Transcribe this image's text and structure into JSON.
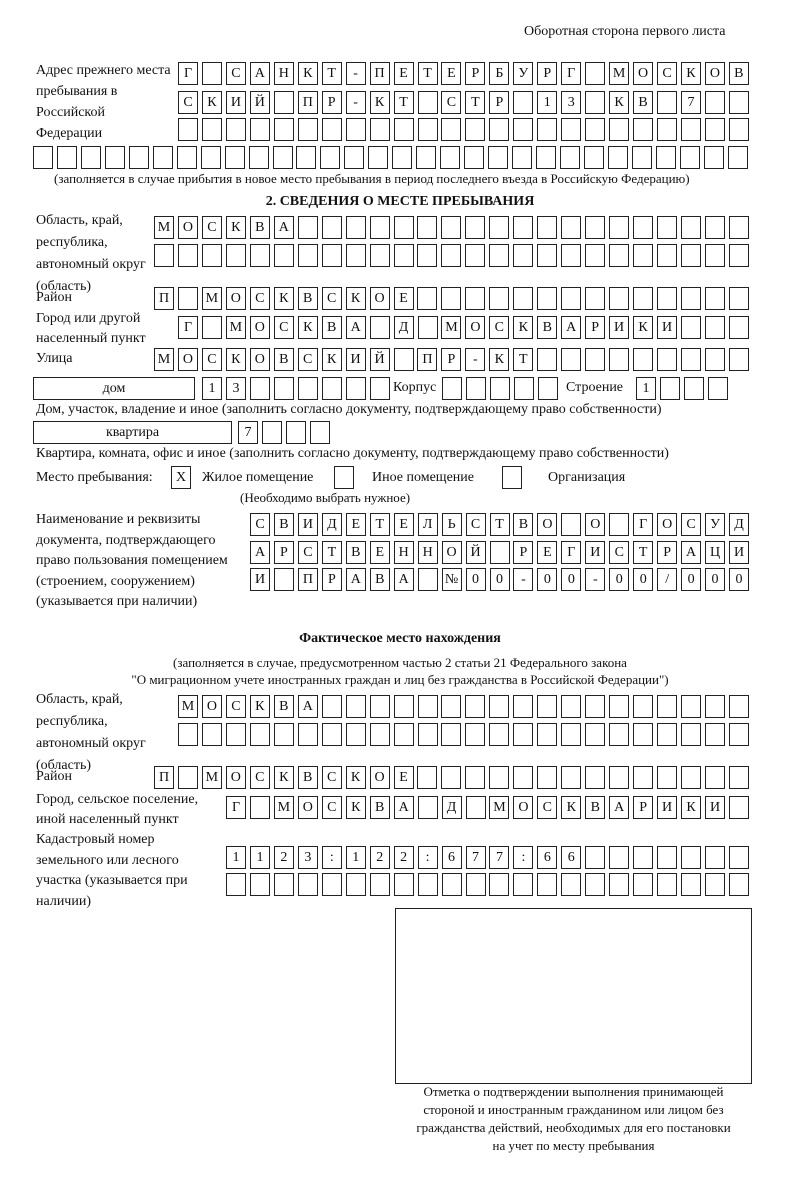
{
  "header": "Оборотная сторона первого листа",
  "prev_address": {
    "label": "Адрес прежнего места пребывания в Российской Федерации",
    "rows": [
      [
        "Г",
        "",
        "С",
        "А",
        "Н",
        "К",
        "Т",
        "-",
        "П",
        "Е",
        "Т",
        "Е",
        "Р",
        "Б",
        "У",
        "Р",
        "Г",
        "",
        "М",
        "О",
        "С",
        "К",
        "О",
        "В"
      ],
      [
        "С",
        "К",
        "И",
        "Й",
        "",
        "П",
        "Р",
        "-",
        "К",
        "Т",
        "",
        "С",
        "Т",
        "Р",
        "",
        "1",
        "3",
        "",
        "К",
        "В",
        "",
        "7",
        "",
        ""
      ],
      [
        "",
        "",
        "",
        "",
        "",
        "",
        "",
        "",
        "",
        "",
        "",
        "",
        "",
        "",
        "",
        "",
        "",
        "",
        "",
        "",
        "",
        "",
        "",
        ""
      ],
      [
        "",
        "",
        "",
        "",
        "",
        "",
        "",
        "",
        "",
        "",
        "",
        "",
        "",
        "",
        "",
        "",
        "",
        "",
        "",
        "",
        "",
        "",
        "",
        "",
        "",
        "",
        "",
        "",
        "",
        ""
      ]
    ],
    "note": "(заполняется в случае прибытия в новое место пребывания в период последнего въезда в Российскую Федерацию)"
  },
  "section2": {
    "title": "2. СВЕДЕНИЯ О МЕСТЕ ПРЕБЫВАНИЯ",
    "region_label": "Область, край, республика, автономный округ (область)",
    "region_rows": [
      [
        "М",
        "О",
        "С",
        "К",
        "В",
        "А",
        "",
        "",
        "",
        "",
        "",
        "",
        "",
        "",
        "",
        "",
        "",
        "",
        "",
        "",
        "",
        "",
        "",
        "",
        ""
      ],
      [
        "",
        "",
        "",
        "",
        "",
        "",
        "",
        "",
        "",
        "",
        "",
        "",
        "",
        "",
        "",
        "",
        "",
        "",
        "",
        "",
        "",
        "",
        "",
        "",
        ""
      ]
    ],
    "district_label": "Район",
    "district": [
      "П",
      "",
      "М",
      "О",
      "С",
      "К",
      "В",
      "С",
      "К",
      "О",
      "Е",
      "",
      "",
      "",
      "",
      "",
      "",
      "",
      "",
      "",
      "",
      "",
      "",
      "",
      ""
    ],
    "city_label": "Город или другой населенный пункт",
    "city": [
      "Г",
      "",
      "М",
      "О",
      "С",
      "К",
      "В",
      "А",
      "",
      "Д",
      "",
      "М",
      "О",
      "С",
      "К",
      "В",
      "А",
      "Р",
      "И",
      "К",
      "И",
      "",
      "",
      ""
    ],
    "street_label": "Улица",
    "street": [
      "М",
      "О",
      "С",
      "К",
      "О",
      "В",
      "С",
      "К",
      "И",
      "Й",
      "",
      "П",
      "Р",
      "-",
      "К",
      "Т",
      "",
      "",
      "",
      "",
      "",
      "",
      "",
      "",
      ""
    ],
    "house_type": "дом",
    "house": [
      "1",
      "3",
      "",
      "",
      "",
      "",
      "",
      ""
    ],
    "corpus_label": "Корпус",
    "corpus": [
      "",
      "",
      "",
      "",
      ""
    ],
    "building_label": "Строение",
    "building": [
      "1",
      "",
      "",
      ""
    ],
    "house_note": "Дом, участок, владение и иное (заполнить согласно документу, подтверждающему право собственности)",
    "flat_type": "квартира",
    "flat": [
      "7",
      "",
      "",
      ""
    ],
    "flat_note": "Квартира, комната, офис и иное (заполнить согласно документу, подтверждающему право собственности)",
    "stay_label": "Место пребывания:",
    "stay_options": [
      {
        "mark": "X",
        "label": "Жилое помещение"
      },
      {
        "mark": "",
        "label": "Иное помещение"
      },
      {
        "mark": "",
        "label": "Организация"
      }
    ],
    "stay_note": "(Необходимо выбрать нужное)",
    "doc_label": "Наименование и реквизиты документа, подтверждающего право пользования помещением (строением, сооружением) (указывается при наличии)",
    "doc_rows": [
      [
        "С",
        "В",
        "И",
        "Д",
        "Е",
        "Т",
        "Е",
        "Л",
        "Ь",
        "С",
        "Т",
        "В",
        "О",
        "",
        "О",
        "",
        "Г",
        "О",
        "С",
        "У",
        "Д"
      ],
      [
        "А",
        "Р",
        "С",
        "Т",
        "В",
        "Е",
        "Н",
        "Н",
        "О",
        "Й",
        "",
        "Р",
        "Е",
        "Г",
        "И",
        "С",
        "Т",
        "Р",
        "А",
        "Ц",
        "И"
      ],
      [
        "И",
        "",
        "П",
        "Р",
        "А",
        "В",
        "А",
        "",
        "№",
        "0",
        "0",
        "-",
        "0",
        "0",
        "-",
        "0",
        "0",
        "/",
        "0",
        "0",
        "0"
      ]
    ]
  },
  "actual": {
    "title": "Фактическое место нахождения",
    "note1": "(заполняется в случае, предусмотренном частью 2 статьи 21 Федерального закона",
    "note2": "\"О миграционном учете иностранных граждан и лиц без гражданства в Российской Федерации\")",
    "region_label": "Область, край, республика, автономный округ (область)",
    "region_rows": [
      [
        "М",
        "О",
        "С",
        "К",
        "В",
        "А",
        "",
        "",
        "",
        "",
        "",
        "",
        "",
        "",
        "",
        "",
        "",
        "",
        "",
        "",
        "",
        "",
        "",
        ""
      ],
      [
        "",
        "",
        "",
        "",
        "",
        "",
        "",
        "",
        "",
        "",
        "",
        "",
        "",
        "",
        "",
        "",
        "",
        "",
        "",
        "",
        "",
        "",
        "",
        ""
      ]
    ],
    "district_label": "Район",
    "district": [
      "П",
      "",
      "М",
      "О",
      "С",
      "К",
      "В",
      "С",
      "К",
      "О",
      "Е",
      "",
      "",
      "",
      "",
      "",
      "",
      "",
      "",
      "",
      "",
      "",
      "",
      "",
      ""
    ],
    "city_label": "Город, сельское поселение, иной населенный пункт",
    "city": [
      "Г",
      "",
      "М",
      "О",
      "С",
      "К",
      "В",
      "А",
      "",
      "Д",
      "",
      "М",
      "О",
      "С",
      "К",
      "В",
      "А",
      "Р",
      "И",
      "К",
      "И",
      ""
    ],
    "cadastre_label": "Кадастровый номер земельного или лесного участка (указывается при наличии)",
    "cadastre_rows": [
      [
        "1",
        "1",
        "2",
        "3",
        ":",
        "1",
        "2",
        "2",
        ":",
        "6",
        "7",
        "7",
        ":",
        "6",
        "6",
        "",
        "",
        "",
        "",
        "",
        "",
        ""
      ],
      [
        "",
        "",
        "",
        "",
        "",
        "",
        "",
        "",
        "",
        "",
        "",
        "",
        "",
        "",
        "",
        "",
        "",
        "",
        "",
        "",
        "",
        ""
      ]
    ]
  },
  "confirmation": {
    "caption": [
      "Отметка о подтверждении выполнения принимающей",
      "стороной и иностранным гражданином или лицом без",
      "гражданства действий, необходимых для его постановки",
      "на учет по месту пребывания"
    ]
  }
}
